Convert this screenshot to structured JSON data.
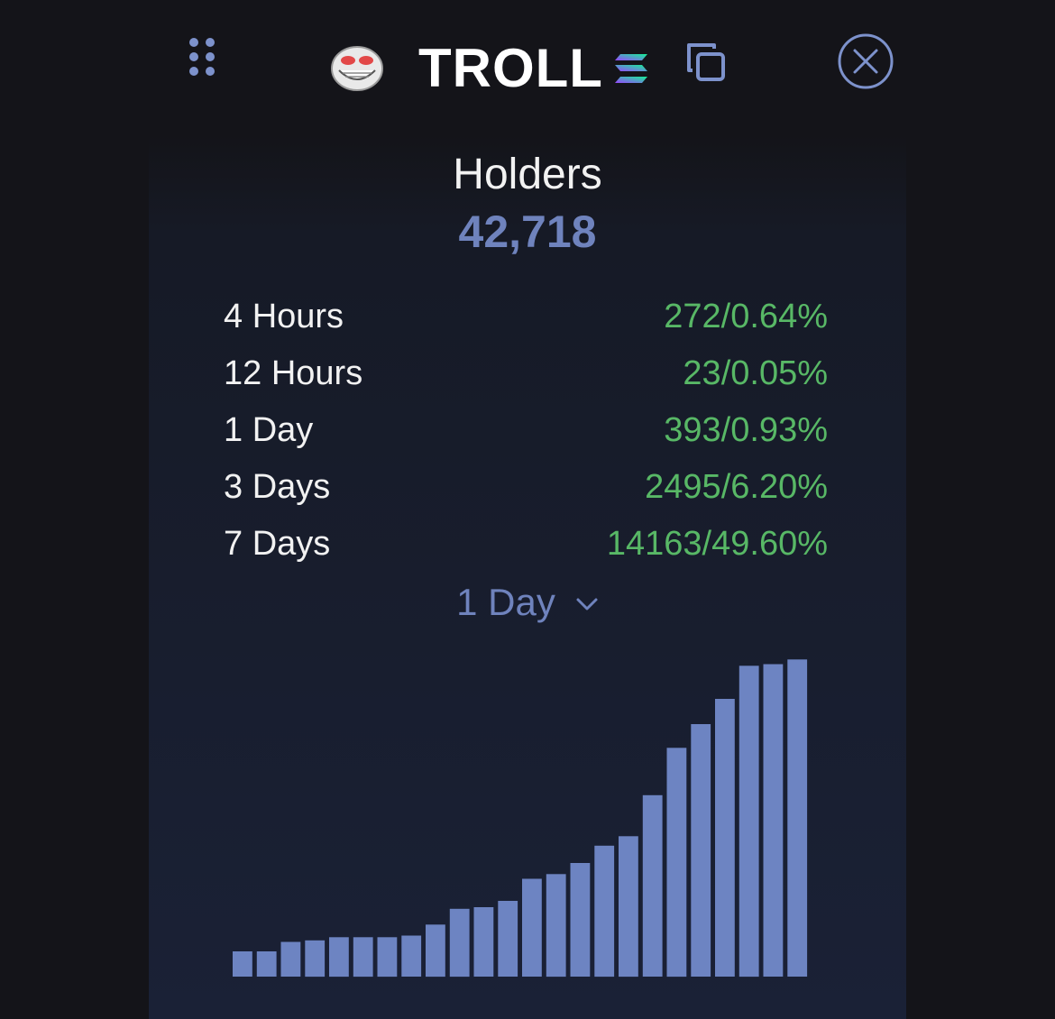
{
  "header": {
    "token_name": "TROLL",
    "icons": {
      "drag": "drag-handle-icon",
      "avatar": "troll-face-icon",
      "chain": "solana-icon",
      "copy": "copy-icon",
      "close": "close-circle-icon"
    }
  },
  "holders": {
    "title": "Holders",
    "count": "42,718"
  },
  "stats": [
    {
      "label": "4 Hours",
      "value": "272/0.64%"
    },
    {
      "label": "12 Hours",
      "value": "23/0.05%"
    },
    {
      "label": "1 Day",
      "value": "393/0.93%"
    },
    {
      "label": "3 Days",
      "value": "2495/6.20%"
    },
    {
      "label": "7 Days",
      "value": "14163/49.60%"
    }
  ],
  "range_select": {
    "selected": "1 Day"
  },
  "colors": {
    "accent": "#6f83bd",
    "positive": "#58b866",
    "bar": "#6d84c2",
    "background": "#141419"
  },
  "chart_data": {
    "type": "bar",
    "title": "",
    "xlabel": "",
    "ylabel": "",
    "ylim": [
      0,
      100
    ],
    "values": [
      8,
      8,
      11,
      11.5,
      12.5,
      12.5,
      12.5,
      13,
      16.5,
      21.5,
      22,
      24,
      31,
      32.5,
      36,
      41.5,
      44.5,
      57.5,
      72.5,
      80,
      88,
      98.5,
      99,
      100.5
    ]
  }
}
